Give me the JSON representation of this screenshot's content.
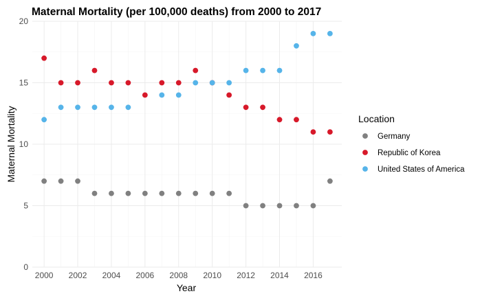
{
  "chart_data": {
    "type": "scatter",
    "title": "Maternal Mortality (per 100,000 deaths) from 2000 to 2017",
    "xlabel": "Year",
    "ylabel": "Maternal Mortality",
    "xlim": [
      1999.3,
      2017.7
    ],
    "ylim": [
      0,
      20
    ],
    "x_ticks": [
      2000,
      2002,
      2004,
      2006,
      2008,
      2010,
      2012,
      2014,
      2016
    ],
    "y_ticks": [
      0,
      5,
      10,
      15,
      20
    ],
    "grid": true,
    "legend": {
      "title": "Location",
      "position": "right"
    },
    "x": [
      2000,
      2001,
      2002,
      2003,
      2004,
      2005,
      2006,
      2007,
      2008,
      2009,
      2010,
      2011,
      2012,
      2013,
      2014,
      2015,
      2016,
      2017
    ],
    "series": [
      {
        "name": "Germany",
        "color": "#808080",
        "values": [
          7,
          7,
          7,
          6,
          6,
          6,
          6,
          6,
          6,
          6,
          6,
          6,
          5,
          5,
          5,
          5,
          5,
          7
        ]
      },
      {
        "name": "Republic of Korea",
        "color": "#d7192a",
        "values": [
          17,
          15,
          15,
          16,
          15,
          15,
          14,
          15,
          15,
          16,
          15,
          14,
          13,
          13,
          12,
          12,
          11,
          11
        ]
      },
      {
        "name": "United States of America",
        "color": "#56b4e9",
        "values": [
          12,
          13,
          13,
          13,
          13,
          13,
          null,
          14,
          14,
          15,
          15,
          15,
          16,
          16,
          16,
          18,
          19,
          19
        ]
      }
    ]
  }
}
